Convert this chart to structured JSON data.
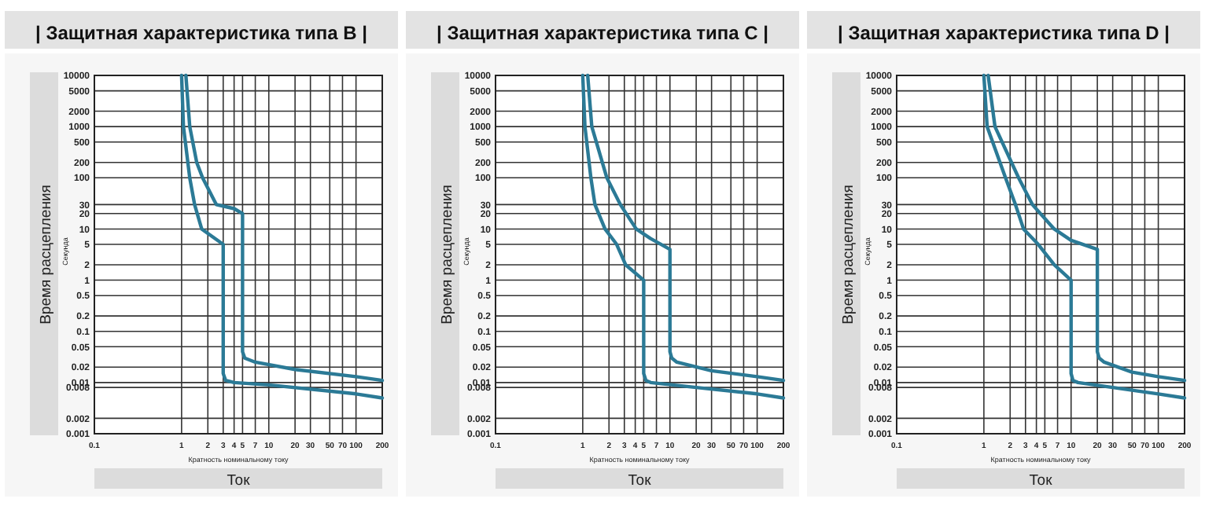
{
  "chart_data": [
    {
      "type": "line",
      "title": "| Защитная характеристика типа B |",
      "xlabel": "Ток",
      "ylabel": "Время расцепления",
      "annotations": [
        "Кратность номинальному току",
        "Секунда"
      ],
      "log": "xy",
      "grid": true,
      "xlim": [
        0.1,
        200
      ],
      "ylim": [
        0.001,
        10000
      ],
      "xticks": [
        0.1,
        1,
        2,
        3,
        4,
        5,
        7,
        10,
        20,
        30,
        50,
        70,
        100,
        200
      ],
      "yticks": [
        10000,
        5000,
        2000,
        1000,
        500,
        200,
        100,
        30,
        20,
        10,
        5,
        2,
        1,
        0.5,
        0.2,
        0.1,
        0.05,
        0.02,
        0.01,
        0.008,
        0.002,
        0.001
      ],
      "series": [
        {
          "color": "#2b7a96",
          "x": [
            1.12,
            1.24,
            1.49,
            1.74,
            2.5,
            4,
            5,
            5,
            5.3,
            7,
            20,
            100,
            200
          ],
          "values": [
            10000,
            1000,
            200,
            100,
            30,
            25,
            20,
            0.04,
            0.03,
            0.025,
            0.018,
            0.013,
            0.011
          ]
        },
        {
          "color": "#2b7a96",
          "x": [
            1.0,
            1.05,
            1.24,
            1.41,
            1.7,
            3,
            3,
            3.2,
            4,
            10,
            100,
            200
          ],
          "values": [
            10000,
            1000,
            100,
            30,
            10,
            5,
            0.015,
            0.011,
            0.01,
            0.009,
            0.006,
            0.005
          ]
        }
      ]
    },
    {
      "type": "line",
      "title": "| Защитная характеристика типа C |",
      "xlabel": "Ток",
      "ylabel": "Время расцепления",
      "annotations": [
        "Кратность номинальному току",
        "Секунда"
      ],
      "log": "xy",
      "grid": true,
      "xlim": [
        0.1,
        200
      ],
      "ylim": [
        0.001,
        10000
      ],
      "xticks": [
        0.1,
        1,
        2,
        3,
        4,
        5,
        7,
        10,
        20,
        30,
        50,
        70,
        100,
        200
      ],
      "yticks": [
        10000,
        5000,
        2000,
        1000,
        500,
        200,
        100,
        30,
        20,
        10,
        5,
        2,
        1,
        0.5,
        0.2,
        0.1,
        0.05,
        0.02,
        0.01,
        0.008,
        0.002,
        0.001
      ],
      "series": [
        {
          "color": "#2b7a96",
          "x": [
            1.14,
            1.27,
            1.89,
            2.7,
            4.1,
            6,
            10,
            10,
            10.5,
            12,
            30,
            100,
            200
          ],
          "values": [
            10000,
            1000,
            100,
            30,
            10,
            6.5,
            4,
            0.04,
            0.03,
            0.025,
            0.017,
            0.013,
            0.011
          ]
        },
        {
          "color": "#2b7a96",
          "x": [
            1.0,
            1.06,
            1.24,
            1.38,
            1.8,
            2.45,
            3.1,
            5,
            5,
            5.3,
            6,
            20,
            100,
            200
          ],
          "values": [
            10000,
            1000,
            100,
            30,
            10,
            5,
            2,
            1,
            0.015,
            0.011,
            0.01,
            0.008,
            0.006,
            0.005
          ]
        }
      ]
    },
    {
      "type": "line",
      "title": "| Защитная характеристика типа D |",
      "xlabel": "Ток",
      "ylabel": "Время расцепления",
      "annotations": [
        "Кратность номинальному току",
        "Секунда"
      ],
      "log": "xy",
      "grid": true,
      "xlim": [
        0.1,
        200
      ],
      "ylim": [
        0.001,
        10000
      ],
      "xticks": [
        0.1,
        1,
        2,
        3,
        4,
        5,
        7,
        10,
        20,
        30,
        50,
        70,
        100,
        200
      ],
      "yticks": [
        10000,
        5000,
        2000,
        1000,
        500,
        200,
        100,
        30,
        20,
        10,
        5,
        2,
        1,
        0.5,
        0.2,
        0.1,
        0.05,
        0.02,
        0.01,
        0.008,
        0.002,
        0.001
      ],
      "series": [
        {
          "color": "#2b7a96",
          "x": [
            1.12,
            1.34,
            2.5,
            3.6,
            6.4,
            10,
            20,
            20,
            21,
            24,
            50,
            100,
            200
          ],
          "values": [
            10000,
            1000,
            100,
            30,
            10,
            6,
            4,
            0.04,
            0.03,
            0.025,
            0.016,
            0.013,
            0.011
          ]
        },
        {
          "color": "#2b7a96",
          "x": [
            1.0,
            1.09,
            1.77,
            2.3,
            2.85,
            4.2,
            6.4,
            10,
            10,
            10.5,
            12,
            30,
            100,
            200
          ],
          "values": [
            10000,
            1000,
            100,
            30,
            10,
            5,
            2,
            1,
            0.015,
            0.011,
            0.01,
            0.008,
            0.006,
            0.005
          ]
        }
      ]
    }
  ]
}
